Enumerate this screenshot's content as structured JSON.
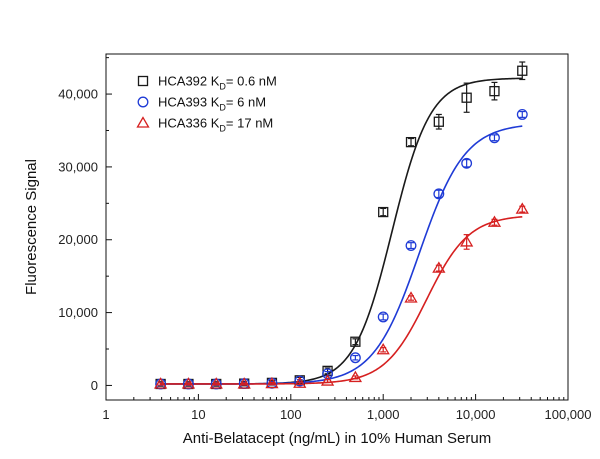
{
  "chart_data": {
    "type": "scatter",
    "title": "",
    "xlabel": "Anti-Belatacept (ng/mL) in 10% Human Serum",
    "ylabel": "Fluorescence Signal",
    "x_scale": "log",
    "xlim": [
      1,
      100000
    ],
    "ylim": [
      -2000,
      45500
    ],
    "x_tick_labels": [
      "1",
      "10",
      "100",
      "1,000",
      "10,000",
      "100,000"
    ],
    "x_tick_values": [
      1,
      10,
      100,
      1000,
      10000,
      100000
    ],
    "y_tick_labels": [
      "0",
      "10,000",
      "20,000",
      "30,000",
      "40,000"
    ],
    "y_tick_values": [
      0,
      10000,
      20000,
      30000,
      40000
    ],
    "grid": false,
    "legend_position": "top-left",
    "series": [
      {
        "name": "HCA392",
        "kd_label": "K",
        "kd_sub": "D",
        "kd_value": "= 0.6 nM",
        "color": "#1a1a1a",
        "marker": "square",
        "fit": {
          "bottom": 200,
          "top": 42200,
          "ec50": 1250,
          "hill": 2.1
        },
        "points": [
          {
            "x": 3.9,
            "y": 200,
            "err": 300
          },
          {
            "x": 7.8,
            "y": 200,
            "err": 300
          },
          {
            "x": 15.6,
            "y": 200,
            "err": 300
          },
          {
            "x": 31.3,
            "y": 250,
            "err": 300
          },
          {
            "x": 62.5,
            "y": 350,
            "err": 300
          },
          {
            "x": 125,
            "y": 700,
            "err": 400
          },
          {
            "x": 250,
            "y": 2000,
            "err": 400
          },
          {
            "x": 500,
            "y": 6000,
            "err": 400
          },
          {
            "x": 1000,
            "y": 23800,
            "err": 500
          },
          {
            "x": 2000,
            "y": 33400,
            "err": 500
          },
          {
            "x": 4000,
            "y": 36200,
            "err": 1000
          },
          {
            "x": 8000,
            "y": 39500,
            "err": 2000
          },
          {
            "x": 16000,
            "y": 40400,
            "err": 1200
          },
          {
            "x": 32000,
            "y": 43200,
            "err": 1200
          }
        ]
      },
      {
        "name": "HCA393",
        "kd_label": "K",
        "kd_sub": "D",
        "kd_value": "= 6 nM",
        "color": "#1f3bd6",
        "marker": "circle",
        "fit": {
          "bottom": 200,
          "top": 36000,
          "ec50": 2450,
          "hill": 1.75
        },
        "points": [
          {
            "x": 3.9,
            "y": 200,
            "err": 200
          },
          {
            "x": 7.8,
            "y": 200,
            "err": 200
          },
          {
            "x": 15.6,
            "y": 200,
            "err": 200
          },
          {
            "x": 31.3,
            "y": 250,
            "err": 200
          },
          {
            "x": 62.5,
            "y": 300,
            "err": 200
          },
          {
            "x": 125,
            "y": 600,
            "err": 200
          },
          {
            "x": 250,
            "y": 1600,
            "err": 300
          },
          {
            "x": 500,
            "y": 3800,
            "err": 300
          },
          {
            "x": 1000,
            "y": 9400,
            "err": 400
          },
          {
            "x": 2000,
            "y": 19200,
            "err": 400
          },
          {
            "x": 4000,
            "y": 26300,
            "err": 500
          },
          {
            "x": 8000,
            "y": 30500,
            "err": 500
          },
          {
            "x": 16000,
            "y": 34000,
            "err": 400
          },
          {
            "x": 32000,
            "y": 37200,
            "err": 400
          }
        ]
      },
      {
        "name": "HCA336",
        "kd_label": "K",
        "kd_sub": "D",
        "kd_value": "= 17 nM",
        "color": "#d62020",
        "marker": "triangle",
        "fit": {
          "bottom": 200,
          "top": 23400,
          "ec50": 2950,
          "hill": 1.9
        },
        "points": [
          {
            "x": 3.9,
            "y": 200,
            "err": 150
          },
          {
            "x": 7.8,
            "y": 200,
            "err": 150
          },
          {
            "x": 15.6,
            "y": 200,
            "err": 150
          },
          {
            "x": 31.3,
            "y": 200,
            "err": 150
          },
          {
            "x": 62.5,
            "y": 250,
            "err": 150
          },
          {
            "x": 125,
            "y": 300,
            "err": 150
          },
          {
            "x": 250,
            "y": 600,
            "err": 200
          },
          {
            "x": 500,
            "y": 1100,
            "err": 200
          },
          {
            "x": 1000,
            "y": 4900,
            "err": 300
          },
          {
            "x": 2000,
            "y": 12000,
            "err": 300
          },
          {
            "x": 4000,
            "y": 16100,
            "err": 400
          },
          {
            "x": 8000,
            "y": 19700,
            "err": 1000
          },
          {
            "x": 16000,
            "y": 22400,
            "err": 400
          },
          {
            "x": 32000,
            "y": 24200,
            "err": 400
          }
        ]
      }
    ]
  }
}
